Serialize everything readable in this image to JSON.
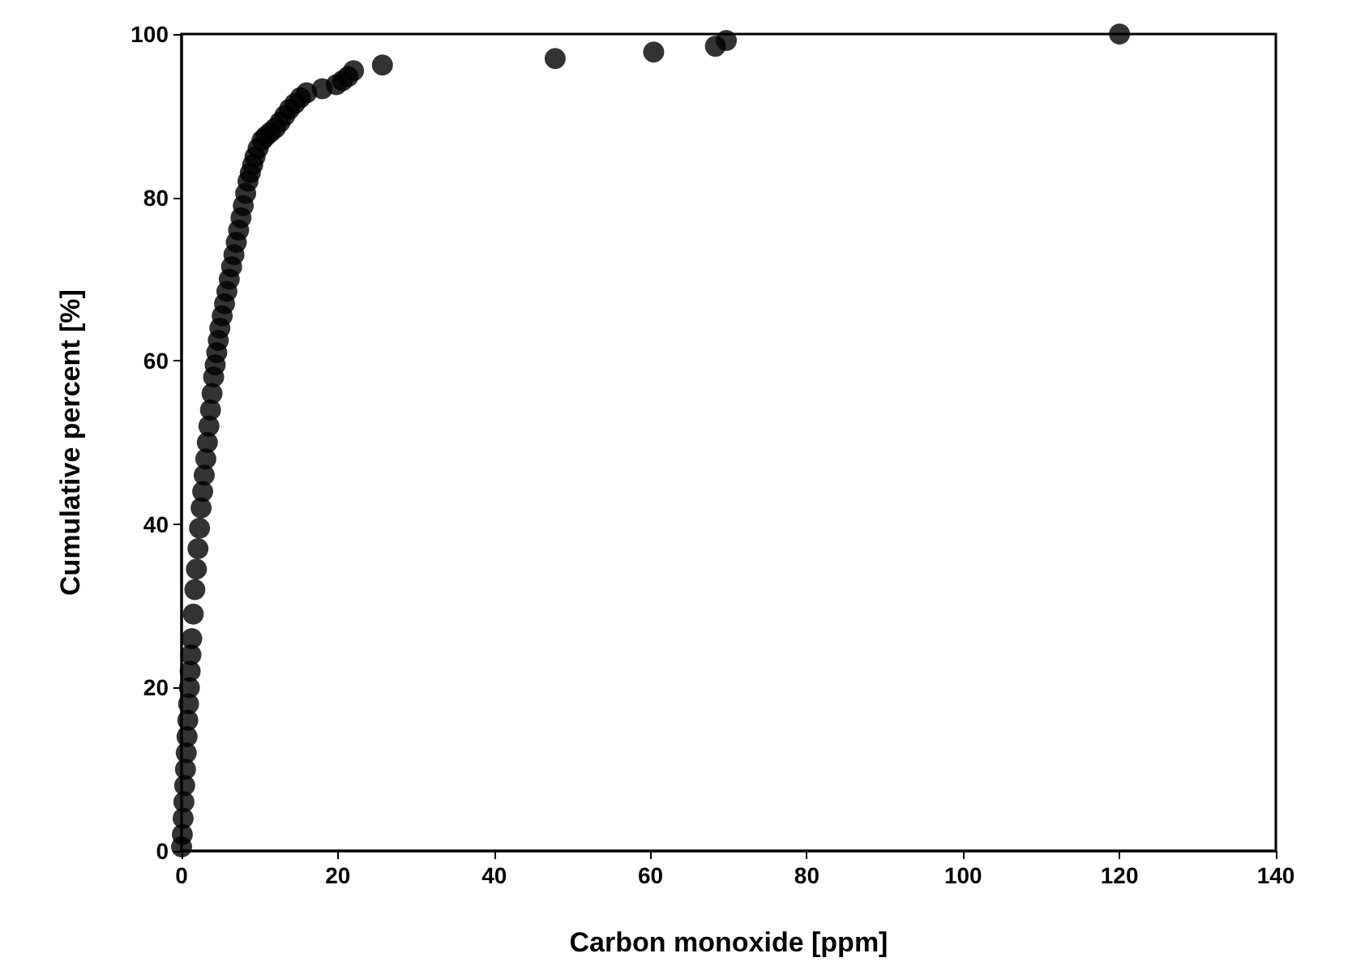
{
  "chart_data": {
    "type": "scatter",
    "xlabel": "Carbon monoxide [ppm]",
    "ylabel": "Cumulative percent [%]",
    "x": [
      0,
      0.1,
      0.2,
      0.3,
      0.4,
      0.5,
      0.6,
      0.7,
      0.8,
      0.9,
      1.0,
      1.1,
      1.2,
      1.3,
      1.5,
      1.7,
      1.9,
      2.1,
      2.3,
      2.5,
      2.7,
      2.9,
      3.1,
      3.3,
      3.5,
      3.7,
      3.9,
      4.1,
      4.3,
      4.5,
      4.7,
      4.9,
      5.2,
      5.5,
      5.8,
      6.1,
      6.4,
      6.7,
      7.0,
      7.3,
      7.6,
      7.9,
      8.2,
      8.5,
      8.8,
      9.1,
      9.4,
      9.8,
      10.3,
      10.8,
      11.4,
      12.0,
      12.6,
      13.2,
      13.8,
      14.5,
      15.2,
      16.0,
      18.0,
      19.8,
      20.6,
      21.3,
      22.0,
      25.7,
      47.8,
      60.4,
      68.3,
      69.7,
      120
    ],
    "values": [
      0.5,
      2,
      4,
      6,
      8,
      10,
      12,
      14,
      16,
      18,
      20,
      22,
      24,
      26,
      29,
      32,
      34.5,
      37,
      39.5,
      42,
      44,
      46,
      48,
      50,
      52,
      54,
      56,
      58,
      59.5,
      61,
      62.5,
      64,
      65.5,
      67,
      68.5,
      70,
      71.5,
      73,
      74.5,
      76,
      77.5,
      79,
      80.5,
      82,
      83,
      84,
      85,
      86,
      87,
      87.5,
      88,
      88.5,
      89.2,
      90,
      90.8,
      91.5,
      92.2,
      92.8,
      93.3,
      93.8,
      94.3,
      94.8,
      95.5,
      96.2,
      97,
      97.8,
      98.5,
      99.2,
      100
    ],
    "color": "#000000",
    "marker": "circle",
    "xlim": [
      0,
      140
    ],
    "xticks": [
      0,
      20,
      40,
      60,
      80,
      100,
      120,
      140
    ],
    "ylim": [
      0,
      100
    ],
    "yticks": [
      0,
      20,
      40,
      60,
      80,
      100
    ],
    "grid": false
  }
}
